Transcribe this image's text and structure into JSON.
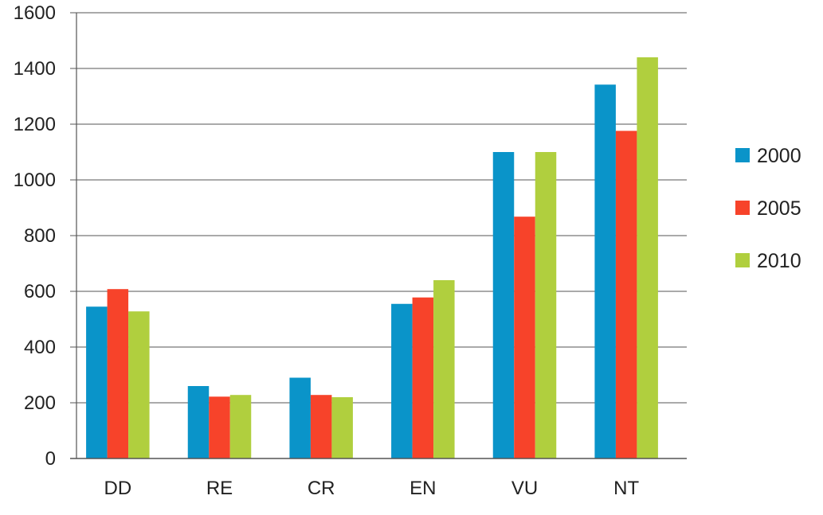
{
  "chart_data": {
    "type": "bar",
    "categories": [
      "DD",
      "RE",
      "CR",
      "EN",
      "VU",
      "NT"
    ],
    "series": [
      {
        "name": "2000",
        "color": "#0a94c9",
        "values": [
          545,
          260,
          290,
          555,
          1100,
          1342
        ]
      },
      {
        "name": "2005",
        "color": "#f7432a",
        "values": [
          608,
          222,
          228,
          578,
          868,
          1176
        ]
      },
      {
        "name": "2010",
        "color": "#b0cf3e",
        "values": [
          528,
          228,
          220,
          640,
          1100,
          1440
        ]
      }
    ],
    "yticks": [
      "0",
      "200",
      "400",
      "600",
      "800",
      "1000",
      "1200",
      "1400",
      "1600"
    ],
    "ylim": [
      0,
      1600
    ],
    "grid": true,
    "legend_position": "right",
    "title": "",
    "xlabel": "",
    "ylabel": ""
  }
}
